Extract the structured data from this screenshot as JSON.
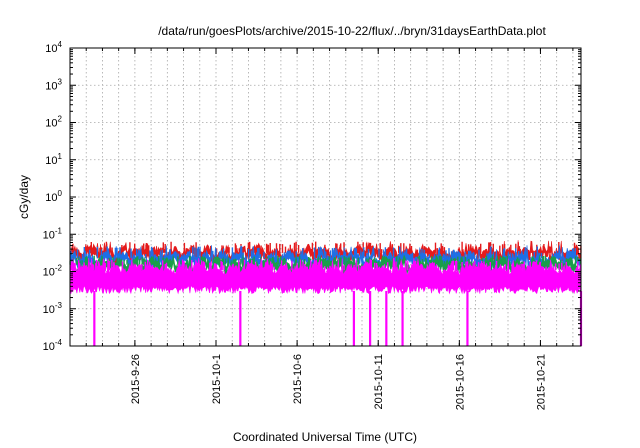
{
  "chart_data": {
    "type": "line",
    "title": "/data/run/goesPlots/archive/2015-10-22/flux/../bryn/31daysEarthData.plot",
    "xlabel": "Coordinated Universal Time (UTC)",
    "ylabel": "cGy/day",
    "yscale": "log",
    "ylim": [
      0.0001,
      10000
    ],
    "xlim": [
      "2015-09-22",
      "2015-10-23"
    ],
    "grid": true,
    "x_ticks": [
      "2015-9-26",
      "2015-10-1",
      "2015-10-6",
      "2015-10-11",
      "2015-10-16",
      "2015-10-21"
    ],
    "y_ticks": [
      {
        "base": "10",
        "exp": "-4",
        "value": 0.0001
      },
      {
        "base": "10",
        "exp": "-3",
        "value": 0.001
      },
      {
        "base": "10",
        "exp": "-2",
        "value": 0.01
      },
      {
        "base": "10",
        "exp": "-1",
        "value": 0.1
      },
      {
        "base": "10",
        "exp": "0",
        "value": 1
      },
      {
        "base": "10",
        "exp": "1",
        "value": 10
      },
      {
        "base": "10",
        "exp": "2",
        "value": 100
      },
      {
        "base": "10",
        "exp": "3",
        "value": 1000
      },
      {
        "base": "10",
        "exp": "4",
        "value": 10000
      }
    ],
    "series": [
      {
        "color": "#e41a1c",
        "typical": 0.035,
        "spread": 0.006,
        "peak": 0.06
      },
      {
        "color": "#1e6fe6",
        "typical": 0.025,
        "spread": 0.004,
        "peak": 0.045
      },
      {
        "color": "#1a9e4a",
        "typical": 0.017,
        "spread": 0.003,
        "peak": 0.025
      },
      {
        "color": "#ff00ff",
        "typical": 0.012,
        "floor": 0.003,
        "peak": 0.02,
        "dropouts": [
          "2015-09-23",
          "2015-10-02",
          "2015-10-09",
          "2015-10-10",
          "2015-10-11",
          "2015-10-12",
          "2015-10-16",
          "2015-10-23"
        ],
        "dropout_value": 0.0001
      }
    ]
  }
}
